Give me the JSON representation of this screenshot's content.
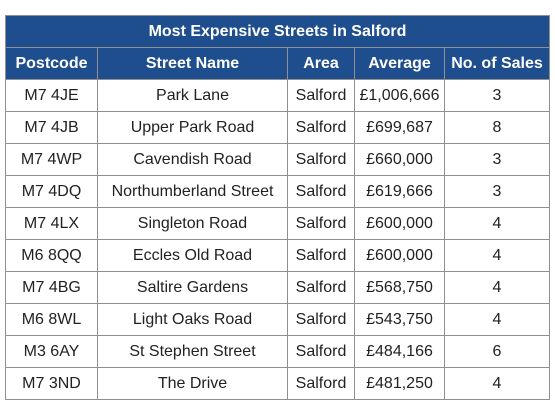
{
  "title": "Most Expensive Streets in Salford",
  "columns": [
    "Postcode",
    "Street Name",
    "Area",
    "Average",
    "No. of Sales"
  ],
  "rows": [
    [
      "M7 4JE",
      "Park Lane",
      "Salford",
      "£1,006,666",
      "3"
    ],
    [
      "M7 4JB",
      "Upper Park Road",
      "Salford",
      "£699,687",
      "8"
    ],
    [
      "M7 4WP",
      "Cavendish Road",
      "Salford",
      "£660,000",
      "3"
    ],
    [
      "M7 4DQ",
      "Northumberland Street",
      "Salford",
      "£619,666",
      "3"
    ],
    [
      "M7 4LX",
      "Singleton Road",
      "Salford",
      "£600,000",
      "4"
    ],
    [
      "M6 8QQ",
      "Eccles Old Road",
      "Salford",
      "£600,000",
      "4"
    ],
    [
      "M7 4BG",
      "Saltire Gardens",
      "Salford",
      "£568,750",
      "4"
    ],
    [
      "M6 8WL",
      "Light Oaks Road",
      "Salford",
      "£543,750",
      "4"
    ],
    [
      "M3 6AY",
      "St Stephen Street",
      "Salford",
      "£484,166",
      "6"
    ],
    [
      "M7 3ND",
      "The Drive",
      "Salford",
      "£481,250",
      "4"
    ]
  ],
  "colors": {
    "header_bg": "#1f4e8f",
    "header_text": "#ffffff",
    "border": "#8f8f8f",
    "cell_text": "#222222"
  }
}
